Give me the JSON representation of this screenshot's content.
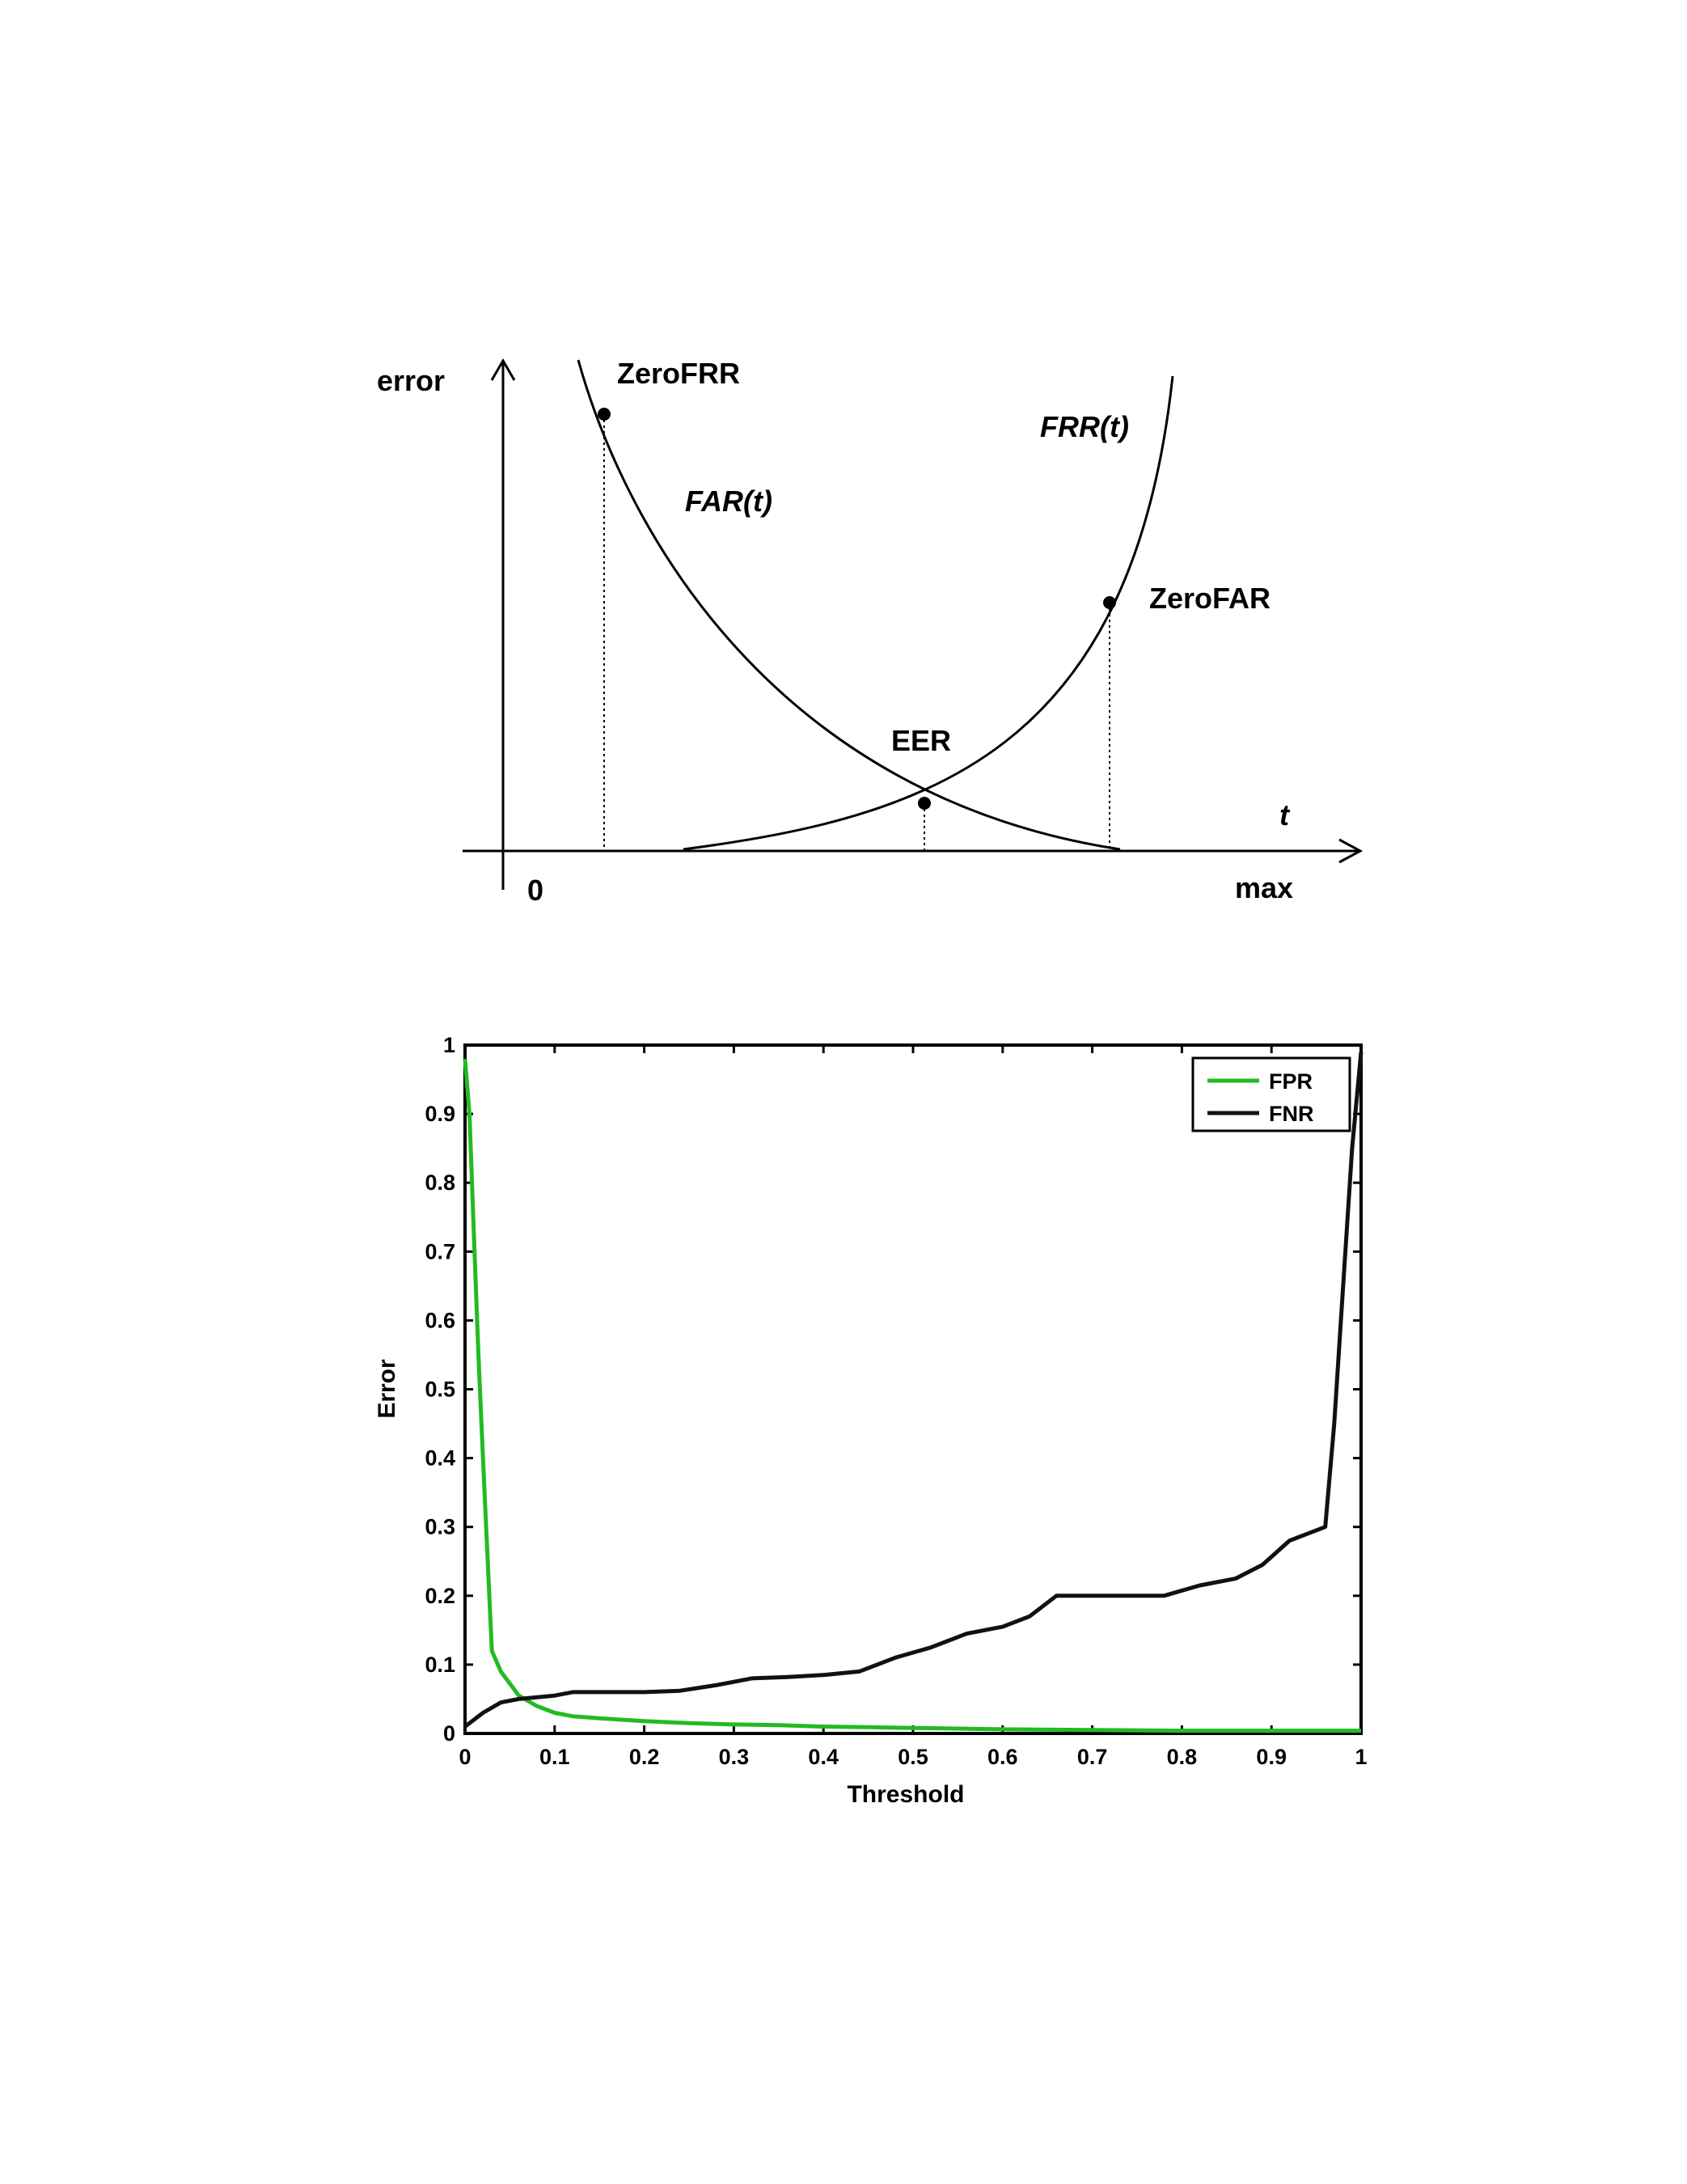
{
  "chart_data": [
    {
      "type": "line",
      "title": "",
      "ylabel": "error",
      "xlabel": "t",
      "x_tick_labels": [
        "0",
        "max"
      ],
      "series": [
        {
          "name": "FAR(t)",
          "shape": "decreasing convex curve from top-left, approaching zero near max"
        },
        {
          "name": "FRR(t)",
          "shape": "increasing convex curve, near zero at low thresholds, rising steeply toward max"
        }
      ],
      "annotations": [
        {
          "text": "ZeroFRR",
          "marker": "point on FAR(t) with dotted drop line to the t axis"
        },
        {
          "text": "EER",
          "marker": "intersection of FAR(t) and FRR(t) with dotted drop line"
        },
        {
          "text": "ZeroFAR",
          "marker": "point on FRR(t) with dotted drop line to the t axis"
        }
      ],
      "grid": false
    },
    {
      "type": "line",
      "title": "",
      "xlabel": "Threshold",
      "ylabel": "Error",
      "xlim": [
        0,
        1
      ],
      "ylim": [
        0,
        1
      ],
      "x_ticks": [
        "0",
        "0.1",
        "0.2",
        "0.3",
        "0.4",
        "0.5",
        "0.6",
        "0.7",
        "0.8",
        "0.9",
        "1"
      ],
      "y_ticks": [
        "0",
        "0.1",
        "0.2",
        "0.3",
        "0.4",
        "0.5",
        "0.6",
        "0.7",
        "0.8",
        "0.9",
        "1"
      ],
      "legend_position": "top-right",
      "grid": false,
      "series": [
        {
          "name": "FPR",
          "color": "#22bb22",
          "x": [
            0.0,
            0.005,
            0.01,
            0.015,
            0.02,
            0.03,
            0.04,
            0.06,
            0.08,
            0.1,
            0.12,
            0.15,
            0.2,
            0.25,
            0.3,
            0.35,
            0.4,
            0.45,
            0.5,
            0.55,
            0.6,
            0.7,
            0.8,
            0.9,
            1.0
          ],
          "y": [
            0.98,
            0.9,
            0.72,
            0.55,
            0.4,
            0.12,
            0.09,
            0.055,
            0.04,
            0.03,
            0.025,
            0.022,
            0.018,
            0.015,
            0.013,
            0.012,
            0.01,
            0.009,
            0.008,
            0.007,
            0.006,
            0.005,
            0.004,
            0.004,
            0.004
          ]
        },
        {
          "name": "FNR",
          "color": "#111111",
          "x": [
            0.0,
            0.02,
            0.04,
            0.06,
            0.1,
            0.12,
            0.2,
            0.24,
            0.28,
            0.32,
            0.36,
            0.4,
            0.44,
            0.48,
            0.52,
            0.56,
            0.6,
            0.63,
            0.66,
            0.7,
            0.78,
            0.82,
            0.86,
            0.89,
            0.92,
            0.94,
            0.96,
            0.97,
            0.98,
            0.99,
            1.0
          ],
          "y": [
            0.01,
            0.03,
            0.045,
            0.05,
            0.055,
            0.06,
            0.06,
            0.062,
            0.07,
            0.08,
            0.082,
            0.085,
            0.09,
            0.11,
            0.125,
            0.145,
            0.155,
            0.17,
            0.2,
            0.2,
            0.2,
            0.215,
            0.225,
            0.245,
            0.28,
            0.29,
            0.3,
            0.45,
            0.65,
            0.85,
            0.99
          ]
        }
      ]
    }
  ]
}
